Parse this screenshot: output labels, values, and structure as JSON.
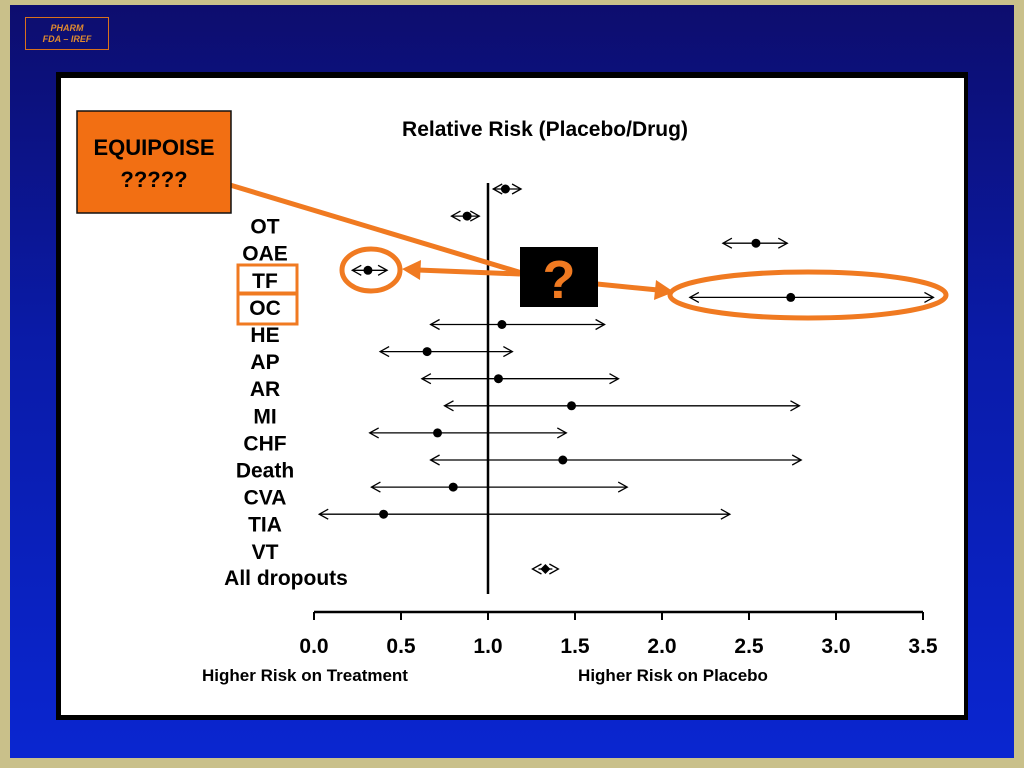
{
  "badge": {
    "line1": "PHARM",
    "line2": "FDA – IREF"
  },
  "callout": {
    "line1": "EQUIPOISE",
    "line2": "?????"
  },
  "question_box": {
    "label": "?"
  },
  "colors": {
    "accent": "#f07a21",
    "callout_fill": "#f26f13",
    "ink": "#000000"
  },
  "chart_data": {
    "type": "forest",
    "title": "Relative Risk (Placebo/Drug)",
    "reference_line": 1.0,
    "xlim": [
      0.0,
      3.5
    ],
    "x_ticks": [
      "0.0",
      "0.5",
      "1.0",
      "1.5",
      "2.0",
      "2.5",
      "3.0",
      "3.5"
    ],
    "x_tick_values": [
      0.0,
      0.5,
      1.0,
      1.5,
      2.0,
      2.5,
      3.0,
      3.5
    ],
    "x_caption_left": "Higher Risk on Treatment",
    "x_caption_right": "Higher Risk on Placebo",
    "rows": [
      {
        "label": "",
        "point": 1.1,
        "low": 1.03,
        "high": 1.19
      },
      {
        "label": "OT",
        "point": 0.88,
        "low": 0.79,
        "high": 0.95
      },
      {
        "label": "OAE",
        "point": 2.54,
        "low": 2.35,
        "high": 2.72
      },
      {
        "label": "TF",
        "point": 0.31,
        "low": 0.22,
        "high": 0.42
      },
      {
        "label": "OC",
        "point": 2.74,
        "low": 2.16,
        "high": 3.56
      },
      {
        "label": "HE",
        "point": 1.08,
        "low": 0.67,
        "high": 1.67
      },
      {
        "label": "AP",
        "point": 0.65,
        "low": 0.38,
        "high": 1.14
      },
      {
        "label": "AR",
        "point": 1.06,
        "low": 0.62,
        "high": 1.75
      },
      {
        "label": "MI",
        "point": 1.48,
        "low": 0.75,
        "high": 2.79
      },
      {
        "label": "CHF",
        "point": 0.71,
        "low": 0.32,
        "high": 1.45
      },
      {
        "label": "Death",
        "point": 1.43,
        "low": 0.67,
        "high": 2.8
      },
      {
        "label": "CVA",
        "point": 0.8,
        "low": 0.33,
        "high": 1.8
      },
      {
        "label": "TIA",
        "point": 0.4,
        "low": 0.03,
        "high": 2.39
      },
      {
        "label": "VT",
        "point": null,
        "low": null,
        "high": null
      }
    ],
    "summary": {
      "label": "All dropouts",
      "point": 1.33,
      "low": 1.29,
      "high": 1.37
    }
  }
}
